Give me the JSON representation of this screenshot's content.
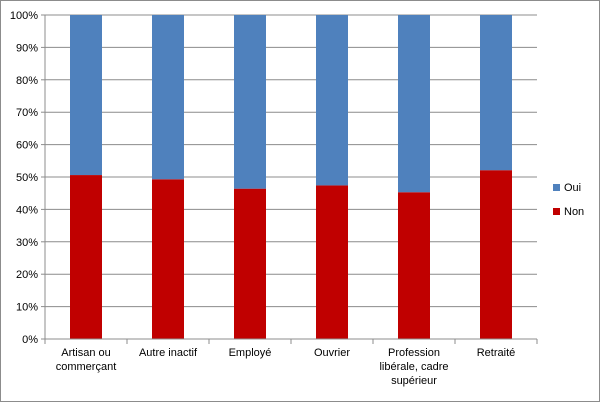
{
  "chart_data": {
    "type": "bar",
    "stacked": true,
    "percent": true,
    "categories": [
      [
        "Artisan ou",
        "commerçant"
      ],
      [
        "Autre inactif"
      ],
      [
        "Employé"
      ],
      [
        "Ouvrier"
      ],
      [
        "Profession",
        "libérale, cadre",
        "supérieur"
      ],
      [
        "Retraité"
      ]
    ],
    "series": [
      {
        "name": "Non",
        "color": "#c00000",
        "values": [
          50.6,
          49.3,
          46.4,
          47.4,
          45.3,
          52.1
        ]
      },
      {
        "name": "Oui",
        "color": "#4f81bd",
        "values": [
          49.4,
          50.7,
          53.6,
          52.6,
          54.7,
          47.9
        ]
      }
    ],
    "ylim": [
      0,
      100
    ],
    "yticks": [
      "0%",
      "10%",
      "20%",
      "30%",
      "40%",
      "50%",
      "60%",
      "70%",
      "80%",
      "90%",
      "100%"
    ],
    "grid": true,
    "legend": {
      "position": "right",
      "order": [
        "Oui",
        "Non"
      ]
    },
    "title": "",
    "xlabel": "",
    "ylabel": ""
  }
}
